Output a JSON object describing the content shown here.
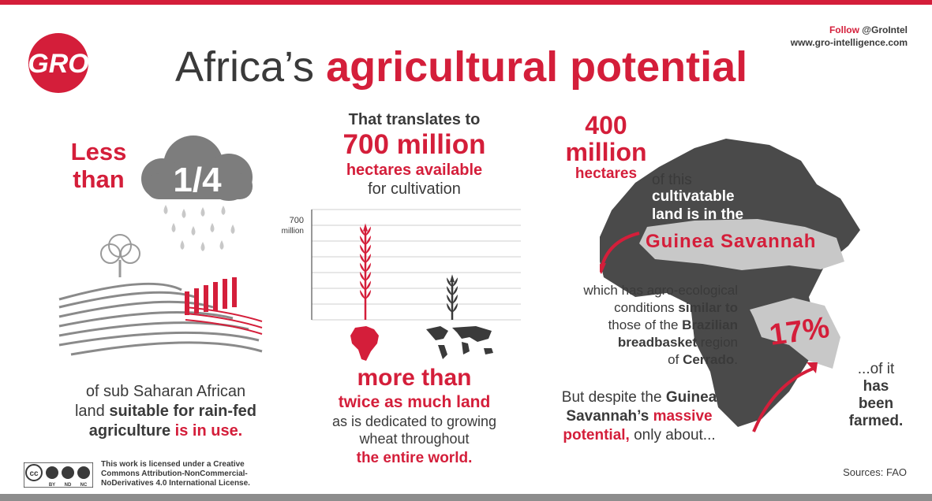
{
  "header": {
    "logo_text": "GRO",
    "title_part1": "Africa’s ",
    "title_part2": "agricultural potential",
    "follow_label": "Follow ",
    "follow_handle": "@GroIntel",
    "website": "www.gro-intelligence.com"
  },
  "left": {
    "less_than": "Less than",
    "fraction": "1/4",
    "text_line1": "of sub Saharan African",
    "text_line2_a": "land ",
    "text_line2_b": "suitable for rain-fed",
    "text_line3_a": "agriculture ",
    "text_line3_b": "is in use."
  },
  "center": {
    "intro": "That translates to",
    "amount_num": "700",
    "amount_unit": "million",
    "hectares_available": "hectares available",
    "for_cultivation": "for cultivation",
    "more_than": "more than",
    "twice_land": "twice as much land",
    "dedicated": "as is dedicated to growing",
    "wheat": "wheat throughout",
    "entire_world": "the entire world."
  },
  "chart_data": {
    "type": "bar",
    "categories": [
      "Africa",
      "World"
    ],
    "values": [
      700,
      330
    ],
    "ylim": [
      0,
      800
    ],
    "tick_label_num": "700",
    "tick_label_unit": "million",
    "colors": [
      "#d41e3a",
      "#3a3a3a"
    ]
  },
  "right": {
    "big_number": "400",
    "million": "million",
    "hectares": "hectares",
    "of_this": "of this",
    "cultivatable": "cultivatable",
    "land_is_in_the": "land is in the",
    "guinea_savannah": "Guinea Savannah",
    "which_line1": "which has agro-ecological",
    "which_line2_a": "conditions ",
    "which_line2_b": "similar to",
    "which_line3_a": "those of the ",
    "which_line3_b": "Brazilian",
    "which_line4_a": "breadbasket",
    "which_line4_b": " region",
    "which_line5_a": "of ",
    "which_line5_b": "Cerrado",
    "which_line5_c": ".",
    "despite_line1_a": "But despite the ",
    "despite_line1_b": "Guinea",
    "despite_line2_a": "Savannah’s ",
    "despite_line2_b": "massive",
    "despite_line3_a": "potential,",
    "despite_line3_b": " only about...",
    "percent": "17%",
    "of_it": "...of it",
    "has": "has",
    "been": "been",
    "farmed": "farmed."
  },
  "footer": {
    "cc_label": "cc",
    "cc_tags": [
      "BY",
      "ND",
      "NC"
    ],
    "license_line1": "This work is licensed under a Creative",
    "license_line2": "Commons Attribution-NonCommercial-",
    "license_line3": "NoDerivatives 4.0 International License.",
    "sources": "Sources: FAO"
  },
  "colors": {
    "accent": "#d41e3a",
    "dark": "#3a3a3a",
    "gray": "#8d8d8d",
    "light_gray": "#c8c8c8"
  }
}
